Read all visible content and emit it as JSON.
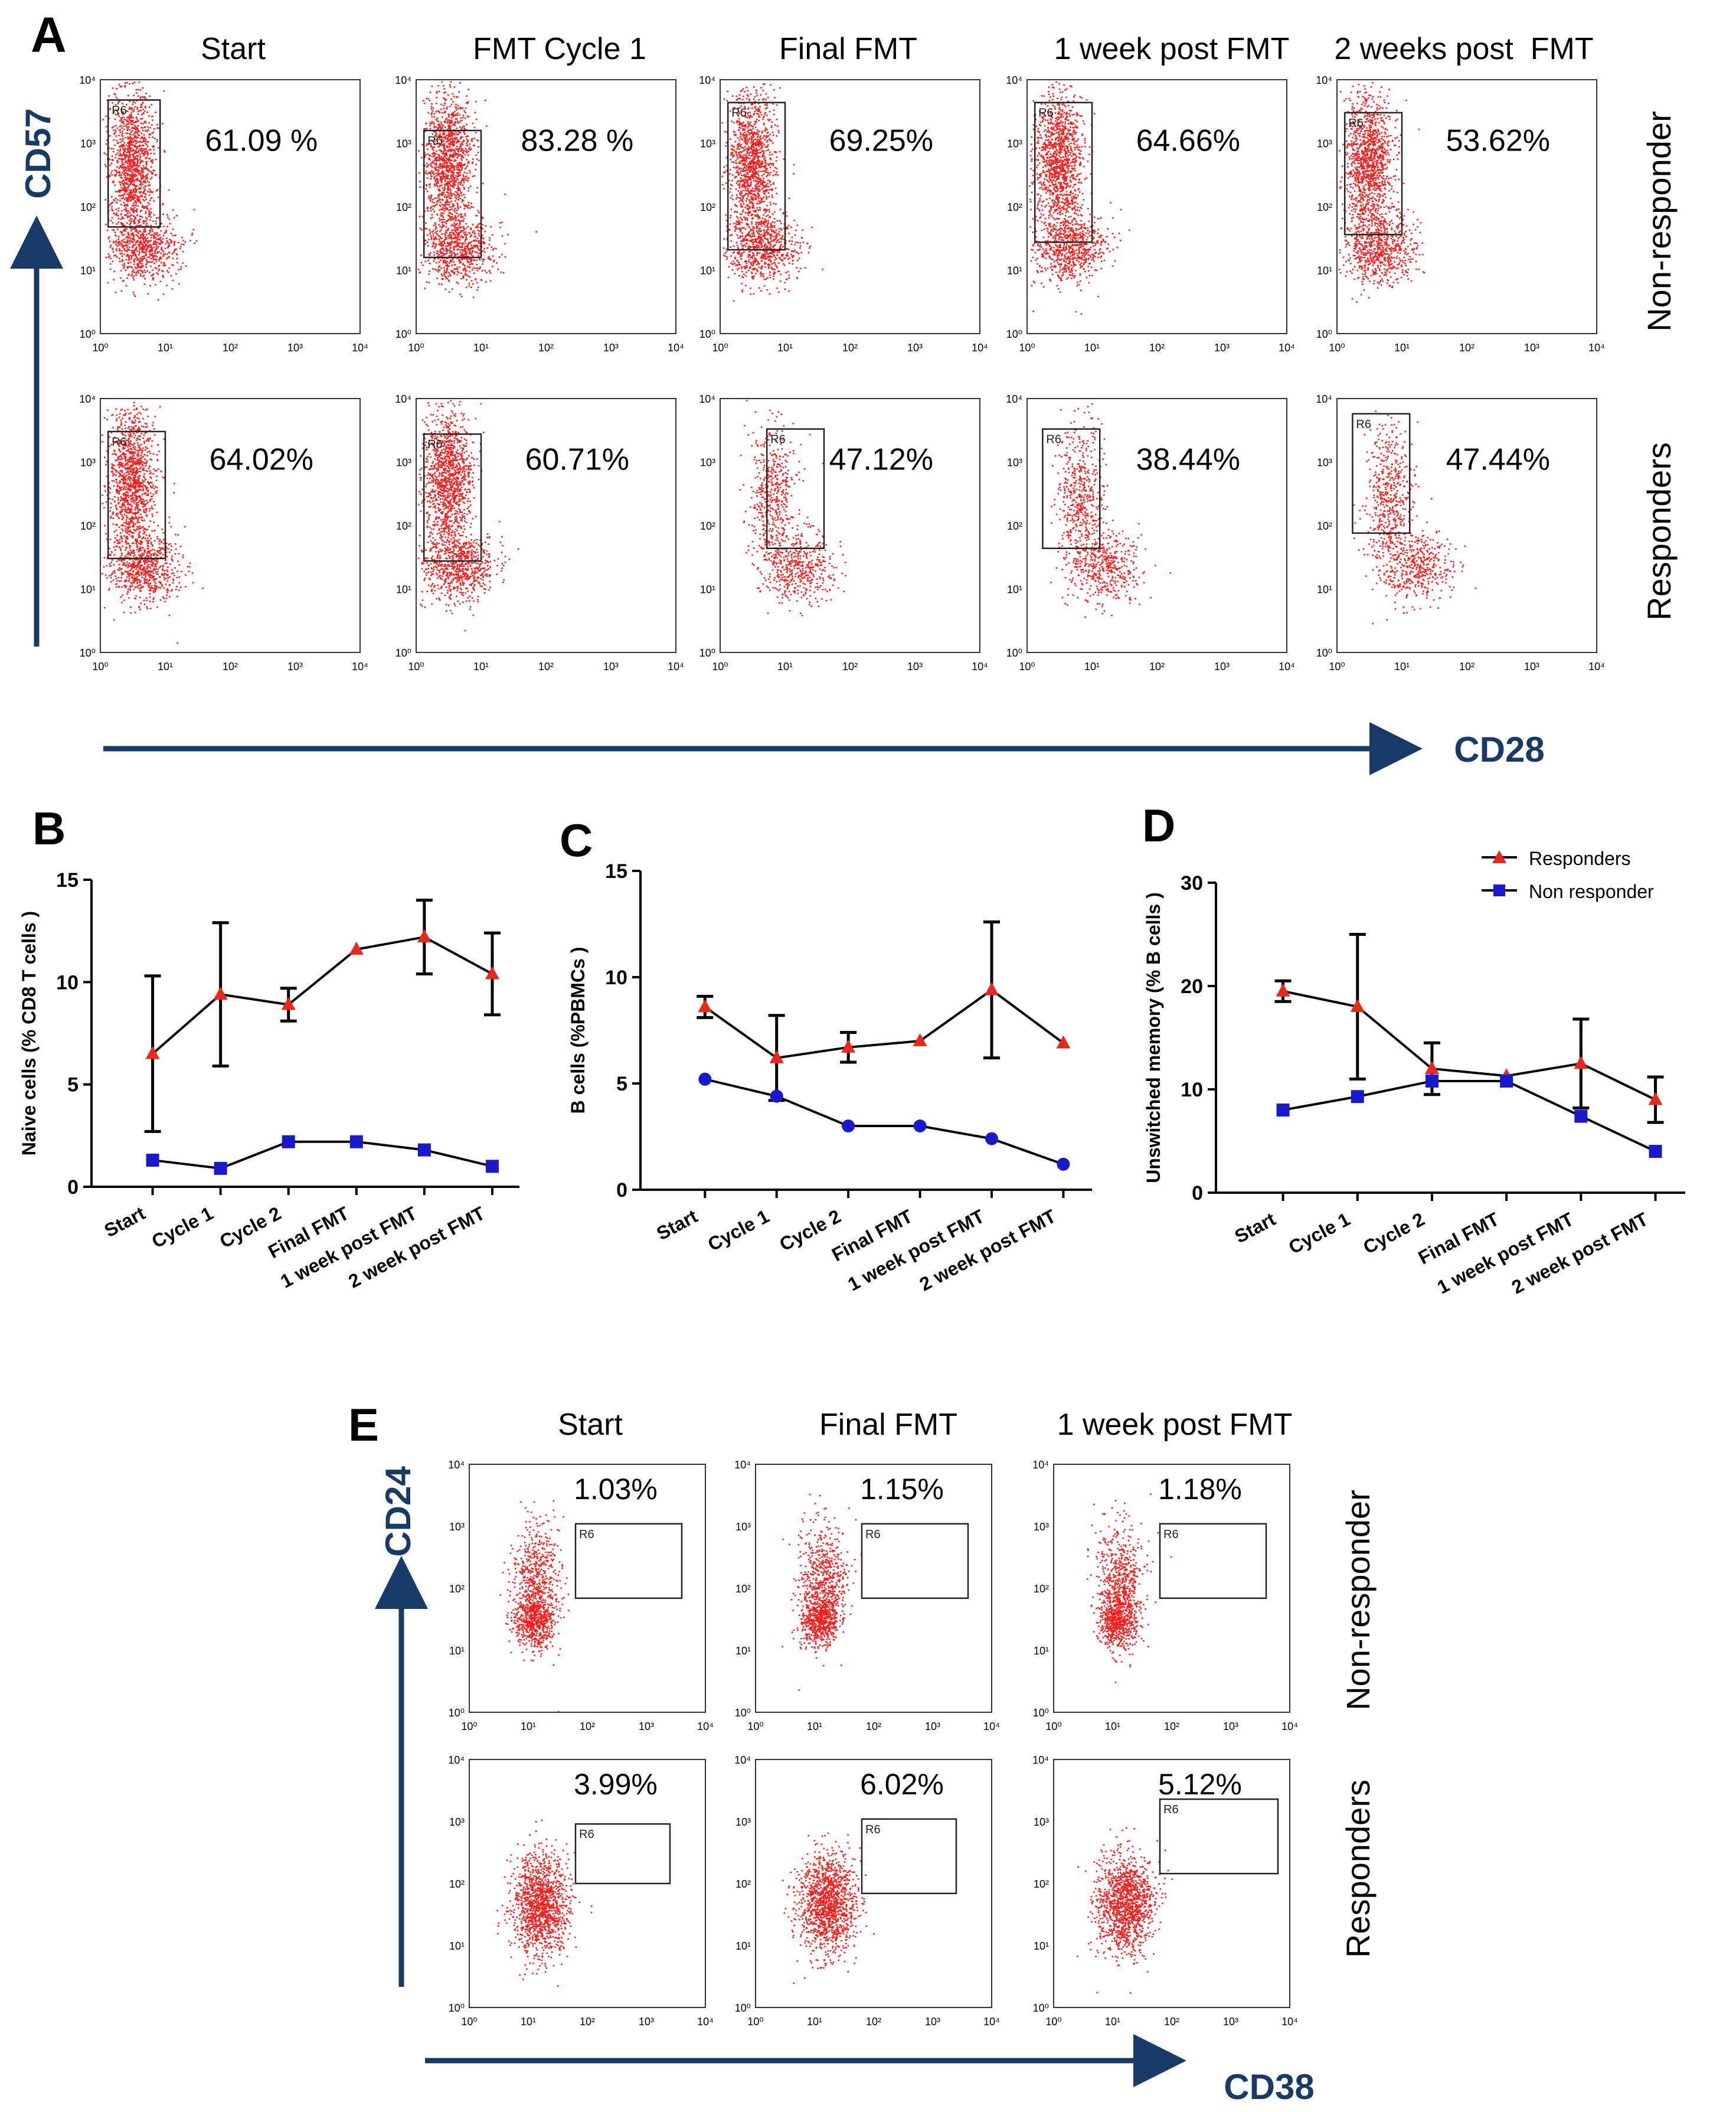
{
  "panels": {
    "A": {
      "letter": "A",
      "columns": [
        "Start",
        "FMT Cycle 1",
        "Final FMT",
        "1 week post FMT",
        "2 weeks post  FMT"
      ],
      "rows": [
        "Non-responder",
        "Responders"
      ],
      "y_marker": "CD57",
      "x_marker": "CD28",
      "gate_label": "R6",
      "percentages": [
        [
          "61.09 %",
          "83.28 %",
          "69.25%",
          "64.66%",
          "53.62%"
        ],
        [
          "64.02%",
          "60.71%",
          "47.12%",
          "38.44%",
          "47.44%"
        ]
      ],
      "axis_ticks": [
        "10⁰",
        "10¹",
        "10²",
        "10³",
        "10⁴"
      ]
    },
    "E": {
      "letter": "E",
      "columns": [
        "Start",
        "Final FMT",
        "1 week post FMT"
      ],
      "rows": [
        "Non-responder",
        "Responders"
      ],
      "y_marker": "CD24",
      "x_marker": "CD38",
      "gate_label": "R6",
      "percentages": [
        [
          "1.03%",
          "1.15%",
          "1.18%"
        ],
        [
          "3.99%",
          "6.02%",
          "5.12%"
        ]
      ],
      "axis_ticks": [
        "10⁰",
        "10¹",
        "10²",
        "10³",
        "10⁴"
      ]
    },
    "B": {
      "letter": "B"
    },
    "C": {
      "letter": "C"
    },
    "D": {
      "letter": "D"
    }
  },
  "colors": {
    "dots": "#ff1a1a",
    "axis": "#1a3a66",
    "responders": "#e8271f",
    "non_responder_sq": "#1a1acc",
    "non_responder_circle": "#1a1acc"
  },
  "chart_data": [
    {
      "id": "B",
      "type": "line",
      "categories": [
        "Start",
        "Cycle 1",
        "Cycle 2",
        "Final FMT",
        "1 week post FMT",
        "2 week post FMT"
      ],
      "ylabel": "Naive cells (% CD8 T cells )",
      "ylim": [
        0,
        15
      ],
      "yticks": [
        "0",
        "5",
        "10",
        "15"
      ],
      "series": [
        {
          "name": "Responders",
          "marker": "triangle",
          "values": [
            6.5,
            9.4,
            8.9,
            11.6,
            12.2,
            10.4
          ],
          "err": [
            3.8,
            3.5,
            0.8,
            0,
            1.8,
            2.0
          ]
        },
        {
          "name": "Non responder",
          "marker": "square",
          "values": [
            1.3,
            0.9,
            2.2,
            2.2,
            1.8,
            1.0
          ],
          "err": [
            0,
            0,
            0,
            0,
            0,
            0
          ]
        }
      ]
    },
    {
      "id": "C",
      "type": "line",
      "categories": [
        "Start",
        "Cycle 1",
        "Cycle 2",
        "Final FMT",
        "1 week post FMT",
        "2 week post FMT"
      ],
      "ylabel": "B cells (%PBMCs )",
      "ylim": [
        0,
        15
      ],
      "yticks": [
        "0",
        "5",
        "10",
        "15"
      ],
      "series": [
        {
          "name": "Responders",
          "marker": "triangle",
          "values": [
            8.6,
            6.2,
            6.7,
            7.0,
            9.4,
            6.9
          ],
          "err": [
            0.5,
            2.0,
            0.7,
            0,
            3.2,
            0
          ]
        },
        {
          "name": "Non responder",
          "marker": "circle",
          "values": [
            5.2,
            4.4,
            3.0,
            3.0,
            2.4,
            1.2
          ],
          "err": [
            0,
            0,
            0,
            0,
            0,
            0
          ]
        }
      ]
    },
    {
      "id": "D",
      "type": "line",
      "categories": [
        "Start",
        "Cycle 1",
        "Cycle 2",
        "Final FMT",
        "1 week post FMT",
        "2 week post FMT"
      ],
      "ylabel": "Unswitched memory (% B cells )",
      "ylim": [
        0,
        30
      ],
      "yticks": [
        "0",
        "10",
        "20",
        "30"
      ],
      "legend": [
        "Responders",
        "Non responder"
      ],
      "series": [
        {
          "name": "Responders",
          "marker": "triangle",
          "values": [
            19.5,
            18.0,
            12.0,
            11.3,
            12.5,
            9.0
          ],
          "err": [
            1.0,
            7.0,
            2.5,
            0,
            4.3,
            2.2
          ]
        },
        {
          "name": "Non responder",
          "marker": "square",
          "values": [
            8.0,
            9.3,
            10.8,
            10.8,
            7.4,
            4.0
          ],
          "err": [
            0,
            0,
            0,
            0,
            0,
            0
          ]
        }
      ]
    }
  ]
}
